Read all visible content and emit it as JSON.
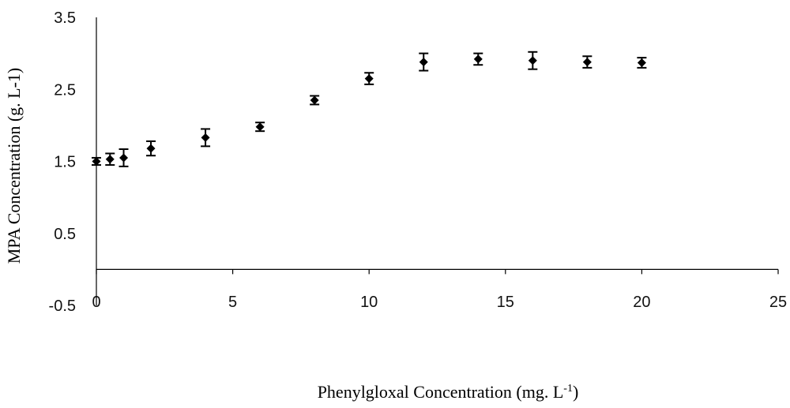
{
  "chart_data": {
    "type": "scatter",
    "title": "",
    "xlabel": "Phenylgloxal Concentration (mg. L",
    "xlabel_sup": "-1",
    "xlabel_end": ")",
    "ylabel": "MPA Concentration (g. L-1)",
    "xlim": [
      0,
      25
    ],
    "ylim": [
      -0.5,
      3.5
    ],
    "x_ticks": [
      "0",
      "5",
      "10",
      "15",
      "20",
      "25"
    ],
    "y_ticks": [
      "-0.5",
      "0.5",
      "1.5",
      "2.5",
      "3.5"
    ],
    "grid": false,
    "legend": "none",
    "series": [
      {
        "x": [
          0,
          0.5,
          1,
          2,
          4,
          6,
          8,
          10,
          12,
          14,
          16,
          18,
          20
        ],
        "y": [
          1.5,
          1.53,
          1.55,
          1.68,
          1.83,
          1.98,
          2.35,
          2.65,
          2.88,
          2.92,
          2.9,
          2.88,
          2.87
        ],
        "error": [
          0.05,
          0.08,
          0.12,
          0.1,
          0.12,
          0.06,
          0.06,
          0.08,
          0.12,
          0.08,
          0.12,
          0.08,
          0.07
        ]
      }
    ]
  }
}
